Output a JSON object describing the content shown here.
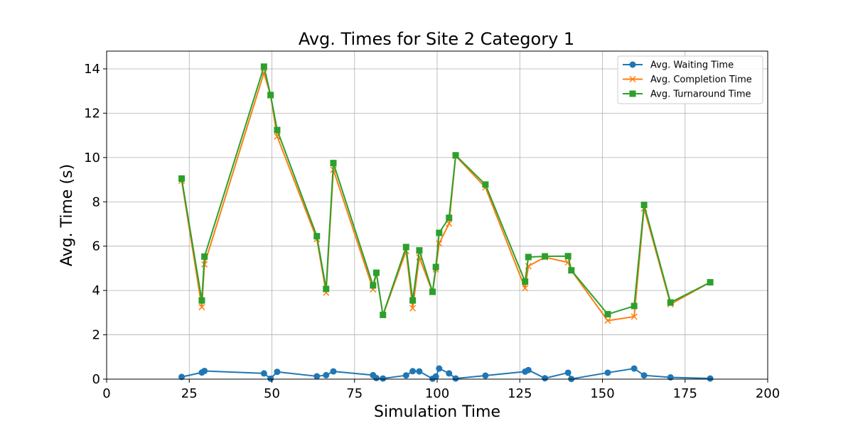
{
  "chart_data": {
    "type": "line",
    "title": "Avg. Times for Site 2 Category 1",
    "xlabel": "Simulation Time",
    "ylabel": "Avg. Time (s)",
    "xlim": [
      0,
      200
    ],
    "ylim": [
      0,
      14.8
    ],
    "xticks": [
      0,
      25,
      50,
      75,
      100,
      125,
      150,
      175,
      200
    ],
    "yticks": [
      0,
      2,
      4,
      6,
      8,
      10,
      12,
      14
    ],
    "grid": true,
    "legend_position": "top-right",
    "x": [
      22.7,
      28.8,
      29.6,
      47.6,
      49.6,
      51.6,
      63.6,
      66.4,
      68.6,
      80.6,
      81.6,
      83.6,
      90.6,
      92.6,
      94.6,
      98.6,
      99.6,
      100.6,
      103.6,
      105.6,
      114.6,
      126.6,
      127.6,
      132.6,
      139.6,
      140.6,
      151.6,
      159.6,
      162.6,
      170.6,
      182.6
    ],
    "series": [
      {
        "name": "Avg. Waiting Time",
        "color": "#1f77b4",
        "marker": "circle",
        "values": [
          0.1,
          0.3,
          0.37,
          0.26,
          0.02,
          0.33,
          0.13,
          0.18,
          0.35,
          0.18,
          0.05,
          0.03,
          0.17,
          0.36,
          0.35,
          0.02,
          0.12,
          0.48,
          0.26,
          0.03,
          0.16,
          0.34,
          0.41,
          0.04,
          0.29,
          0.01,
          0.29,
          0.48,
          0.17,
          0.08,
          0.03
        ]
      },
      {
        "name": "Avg. Completion Time",
        "color": "#ff7f0e",
        "marker": "x",
        "values": [
          8.95,
          3.25,
          5.18,
          13.82,
          12.8,
          10.95,
          6.32,
          3.9,
          9.45,
          4.05,
          4.8,
          2.88,
          5.78,
          3.2,
          5.5,
          3.92,
          4.95,
          6.12,
          7.02,
          10.07,
          8.65,
          4.1,
          5.1,
          5.5,
          5.27,
          4.9,
          2.64,
          2.82,
          7.7,
          3.38,
          4.37
        ]
      },
      {
        "name": "Avg. Turnaround Time",
        "color": "#2ca02c",
        "marker": "square",
        "values": [
          9.05,
          3.55,
          5.53,
          14.1,
          12.82,
          11.24,
          6.45,
          4.07,
          9.75,
          4.23,
          4.8,
          2.9,
          5.96,
          3.55,
          5.81,
          3.94,
          5.06,
          6.6,
          7.28,
          10.1,
          8.78,
          4.4,
          5.51,
          5.54,
          5.55,
          4.91,
          2.93,
          3.3,
          7.86,
          3.46,
          4.37
        ]
      }
    ]
  }
}
